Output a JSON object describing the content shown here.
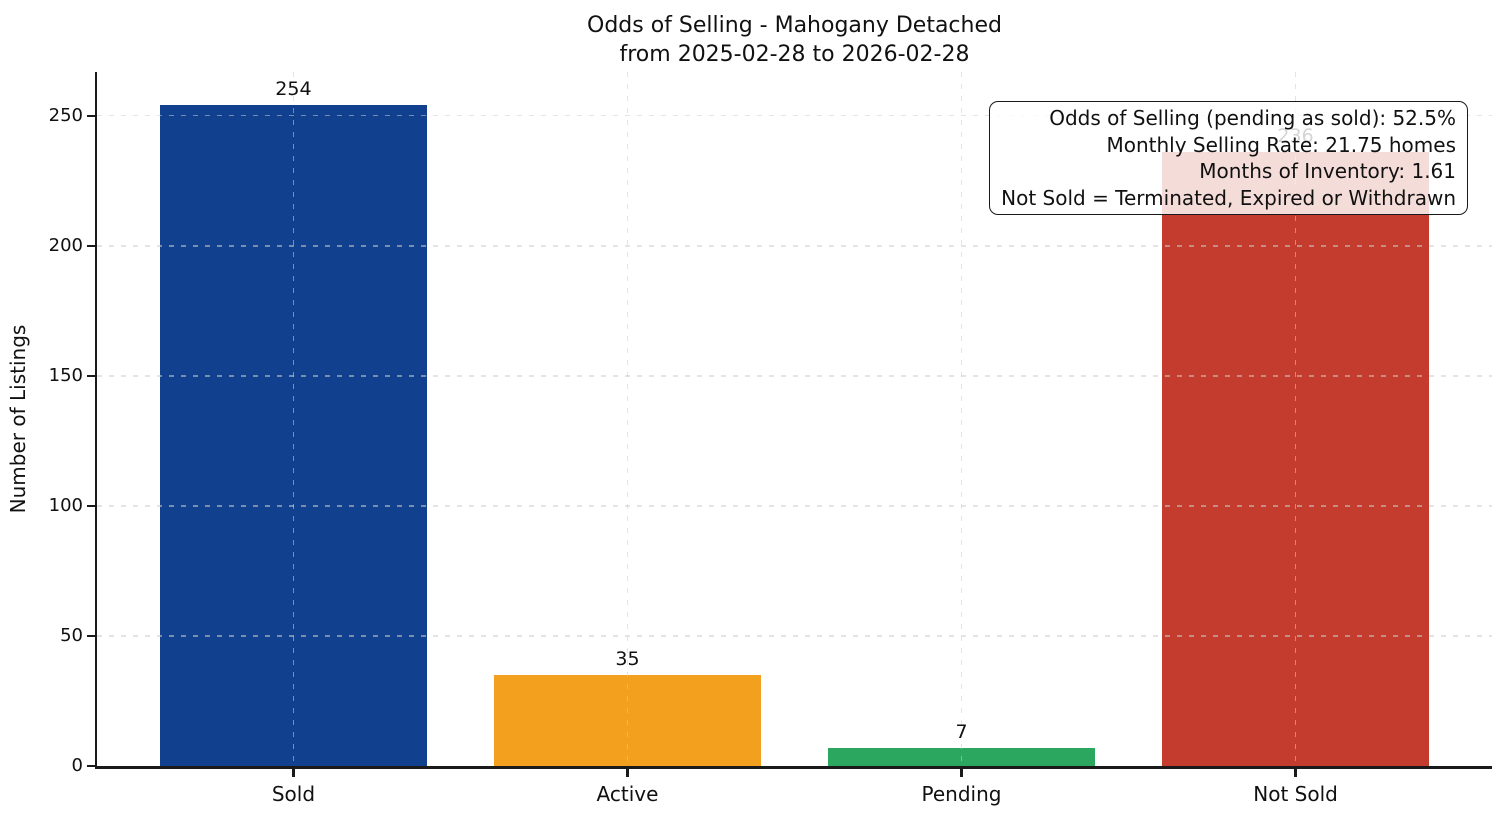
{
  "title": {
    "line1": "Odds of Selling - Mahogany Detached",
    "line2": "from 2025-02-28 to 2026-02-28"
  },
  "chart_data": {
    "type": "bar",
    "title": "Odds of Selling - Mahogany Detached",
    "subtitle": "from 2025-02-28 to 2026-02-28",
    "categories": [
      "Sold",
      "Active",
      "Pending",
      "Not Sold"
    ],
    "values": [
      254,
      35,
      7,
      236
    ],
    "bar_colors": [
      "#11408e",
      "#f2a01d",
      "#2ba75f",
      "#c33c2d"
    ],
    "xlabel": "",
    "ylabel": "Number of Listings",
    "yticks": [
      0,
      50,
      100,
      150,
      200,
      250
    ],
    "ylim": [
      0,
      266.8
    ],
    "xlim": [
      -0.588,
      3.588
    ],
    "bar_width": 0.8,
    "grid": "dashed light-gray gridlines, horizontal at y-ticks and vertical at bar centers, drawn over bars",
    "legend": "none"
  },
  "annotation": {
    "lines": [
      "Odds of Selling (pending as sold): 52.5%",
      "Monthly Selling Rate: 21.75 homes",
      "Months of Inventory: 1.61",
      "Not Sold = Terminated, Expired or Withdrawn"
    ],
    "stats": {
      "odds_of_selling_pending_as_sold": "52.5%",
      "monthly_selling_rate": "21.75 homes",
      "months_of_inventory": "1.61",
      "not_sold_definition": "Terminated, Expired or Withdrawn"
    }
  },
  "colors": {
    "sold": "#11408e",
    "active": "#f2a01d",
    "pending": "#2ba75f",
    "not_sold": "#c33c2d",
    "axis": "#1a1a1a",
    "background": "#ffffff"
  }
}
